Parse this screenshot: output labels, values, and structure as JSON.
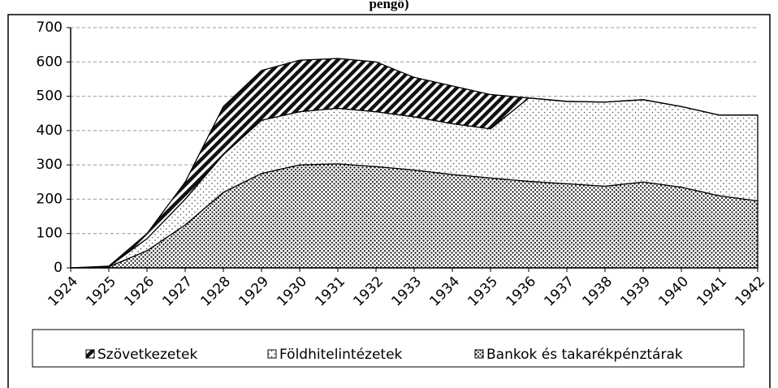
{
  "chart_data": {
    "type": "stacked_area",
    "title": "pengő)",
    "categories": [
      "1924",
      "1925",
      "1926",
      "1927",
      "1928",
      "1929",
      "1930",
      "1931",
      "1932",
      "1933",
      "1934",
      "1935",
      "1936",
      "1937",
      "1938",
      "1939",
      "1940",
      "1941",
      "1942"
    ],
    "series": [
      {
        "name": "Szövetkezetek",
        "color": "#000000",
        "values": [
          0,
          1,
          15,
          50,
          140,
          145,
          150,
          145,
          145,
          115,
          110,
          100,
          0,
          0,
          0,
          0,
          0,
          0,
          0
        ]
      },
      {
        "name": "Földhitelintézetek",
        "color": "#000000",
        "values": [
          0,
          1,
          35,
          75,
          110,
          155,
          155,
          162,
          160,
          155,
          148,
          143,
          243,
          240,
          245,
          240,
          235,
          235,
          250
        ]
      },
      {
        "name": "Bankok és takarékpénztárak",
        "color": "#000000",
        "values": [
          0,
          3,
          50,
          125,
          220,
          275,
          300,
          303,
          295,
          285,
          272,
          262,
          252,
          245,
          238,
          250,
          235,
          210,
          195
        ]
      }
    ],
    "ylim": [
      0,
      700
    ],
    "yticks": [
      0,
      100,
      200,
      300,
      400,
      500,
      600,
      700
    ],
    "grid": true,
    "legend": "bottom"
  }
}
